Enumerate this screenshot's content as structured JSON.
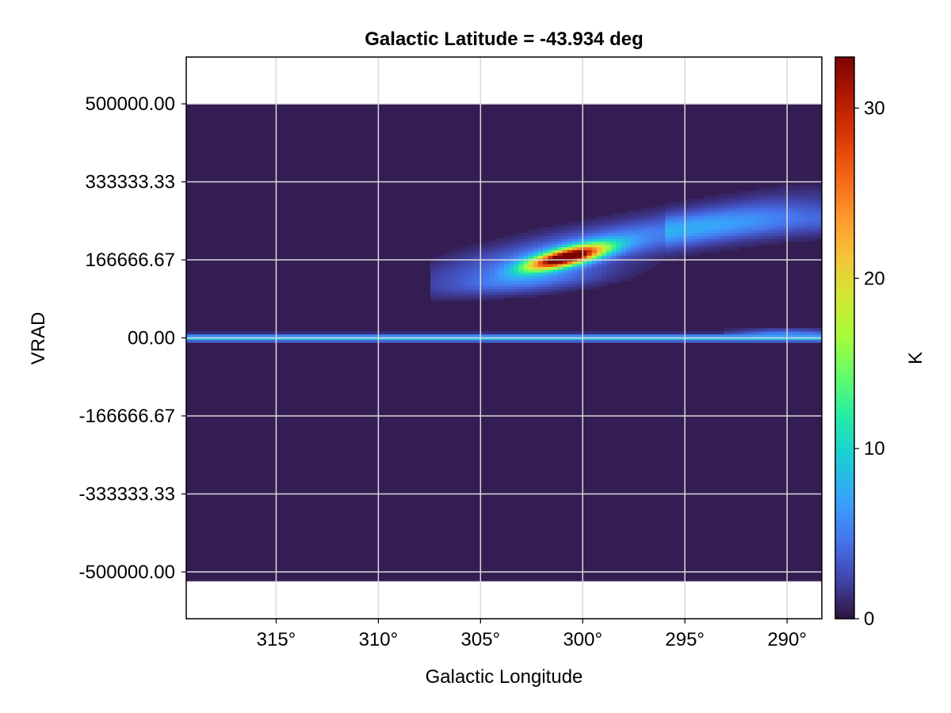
{
  "chart_data": {
    "type": "heatmap",
    "title": "Galactic Latitude = -43.934 deg",
    "xlabel": "Galactic Longitude",
    "ylabel": "VRAD",
    "colorbar_label": "K",
    "colormap": "turbo",
    "grid": true,
    "xlim": [
      319.4,
      288.3
    ],
    "ylim": [
      -600000,
      600000
    ],
    "data_extent": {
      "x": [
        319.4,
        288.3
      ],
      "y": [
        -520000,
        500000
      ]
    },
    "x_ticks": [
      315,
      310,
      305,
      300,
      295,
      290
    ],
    "x_tick_labels": [
      "315°",
      "310°",
      "305°",
      "300°",
      "295°",
      "290°"
    ],
    "y_ticks": [
      500000,
      333333.33,
      166666.67,
      0,
      -166666.67,
      -333333.33,
      -500000
    ],
    "y_tick_labels": [
      "500000.00",
      "333333.33",
      "166666.67",
      "00.00",
      "-166666.67",
      "-333333.33",
      "-500000.00"
    ],
    "colorbar_range": [
      0,
      33
    ],
    "colorbar_ticks": [
      0,
      10,
      20,
      30
    ],
    "colorbar_tick_labels": [
      "0",
      "10",
      "20",
      "30"
    ],
    "background_value": 0.5,
    "features": [
      {
        "name": "zero-velocity-band",
        "x_range": [
          319.4,
          288.3
        ],
        "y_center": 0,
        "peak_K": 9
      },
      {
        "name": "magellanic-stream-ridge",
        "x_range": [
          307,
          288.3
        ],
        "y_range": [
          90000,
          270000
        ],
        "peak_K": 33
      },
      {
        "name": "saturated-core",
        "x_range": [
          303,
          299.5
        ],
        "y_range": [
          150000,
          200000
        ],
        "peak_K": 33
      }
    ]
  },
  "colors": {
    "background": "#ffffff",
    "grid": "#d9d9d9",
    "frame": "#000000"
  }
}
